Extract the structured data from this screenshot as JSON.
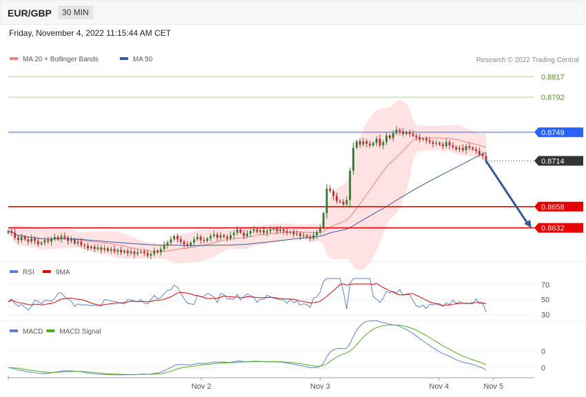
{
  "header": {
    "symbol": "EUR/GBP",
    "timeframe": "30 MIN"
  },
  "date_text": "Friday, November 4, 2022 11:15:44 AM CET",
  "credit": "Research © 2022 Trading Central",
  "colors": {
    "bb": "#f08080",
    "bb_fill": "#ffe0e0",
    "ma50": "#2e5a9c",
    "green": "#8bc34a",
    "blue": "#2962ff",
    "red": "#e60000",
    "current": "#333333",
    "rsi": "#5b7fd6",
    "rsi_ma": "#e60000",
    "macd": "#5b7fd6",
    "macd_signal": "#4caf1a",
    "bull": "#2e7d32",
    "bear": "#c62828",
    "arrow": "#2e5a9c"
  },
  "chart_data": [
    {
      "type": "candlestick",
      "legend": [
        {
          "name": "MA 20 + Bollinger Bands",
          "color": "#f08080"
        },
        {
          "name": "MA 50",
          "color": "#2e5a9c"
        }
      ],
      "levels": [
        {
          "value": 0.8817,
          "label": "0.8817",
          "style": "green-line"
        },
        {
          "value": 0.8792,
          "label": "0.8792",
          "style": "green-line"
        },
        {
          "value": 0.8749,
          "label": "0.8749",
          "style": "blue-box"
        },
        {
          "value": 0.8714,
          "label": "0.8714",
          "style": "current-box"
        },
        {
          "value": 0.8658,
          "label": "0.8658",
          "style": "red-box"
        },
        {
          "value": 0.8632,
          "label": "0.8632",
          "style": "red-box"
        }
      ],
      "ylim": [
        0.8592,
        0.8835
      ],
      "x_ticks": [
        {
          "t": 68,
          "label": "Nov 2"
        },
        {
          "t": 116,
          "label": "Nov 3"
        },
        {
          "t": 164,
          "label": "Nov 4"
        },
        {
          "t": 186,
          "label": "Nov 5"
        }
      ],
      "xlim": [
        -10,
        183
      ],
      "forecast": {
        "from": [
          0,
          0.8714
        ],
        "to": [
          14,
          0.8632
        ]
      },
      "closes": [
        0.8628,
        0.8626,
        0.862,
        0.8617,
        0.8621,
        0.8618,
        0.8615,
        0.8619,
        0.8616,
        0.8612,
        0.8614,
        0.8617,
        0.8615,
        0.8619,
        0.8621,
        0.8618,
        0.8622,
        0.862,
        0.8616,
        0.8618,
        0.8613,
        0.8615,
        0.8611,
        0.861,
        0.8607,
        0.8609,
        0.8606,
        0.8608,
        0.8605,
        0.8607,
        0.8604,
        0.8606,
        0.8603,
        0.8605,
        0.8602,
        0.8604,
        0.8601,
        0.8603,
        0.86,
        0.8602,
        0.8603,
        0.8601,
        0.8598,
        0.86,
        0.8604,
        0.8602,
        0.8606,
        0.8611,
        0.8614,
        0.8618,
        0.8622,
        0.8618,
        0.8615,
        0.8612,
        0.861,
        0.8614,
        0.8618,
        0.8621,
        0.8617,
        0.8616,
        0.8619,
        0.8622,
        0.8624,
        0.862,
        0.8623,
        0.8621,
        0.8619,
        0.8623,
        0.8626,
        0.863,
        0.8626,
        0.8622,
        0.8625,
        0.8628,
        0.863,
        0.8627,
        0.8629,
        0.8626,
        0.8628,
        0.863,
        0.8631,
        0.8628,
        0.863,
        0.8628,
        0.8626,
        0.8627,
        0.8624,
        0.8625,
        0.8622,
        0.8623,
        0.8621,
        0.8619,
        0.8623,
        0.8627,
        0.8632,
        0.865,
        0.868,
        0.8677,
        0.8671,
        0.8665,
        0.8664,
        0.8661,
        0.8666,
        0.8702,
        0.873,
        0.8738,
        0.8734,
        0.8738,
        0.8735,
        0.8733,
        0.8736,
        0.8741,
        0.8733,
        0.8737,
        0.8745,
        0.8742,
        0.8748,
        0.8752,
        0.875,
        0.8747,
        0.8749,
        0.8747,
        0.8745,
        0.8743,
        0.874,
        0.8741,
        0.8739,
        0.8737,
        0.8735,
        0.8736,
        0.8734,
        0.8732,
        0.8737,
        0.8733,
        0.8731,
        0.8728,
        0.873,
        0.8727,
        0.8732,
        0.873,
        0.8728,
        0.8726,
        0.8722,
        0.872,
        0.8714
      ]
    },
    {
      "type": "line",
      "legend": [
        {
          "name": "RSI",
          "color": "#5b7fd6"
        },
        {
          "name": "9MA",
          "color": "#e60000"
        }
      ],
      "y_ticks": [
        70,
        50,
        30
      ],
      "ylim": [
        25,
        80
      ],
      "current": 50
    },
    {
      "type": "line",
      "legend": [
        {
          "name": "MACD",
          "color": "#5b7fd6"
        },
        {
          "name": "MACD Signal",
          "color": "#4caf1a"
        }
      ],
      "y_ticks": [
        {
          "value": 0.001,
          "label": "0"
        },
        {
          "value": 0,
          "label": "0"
        }
      ],
      "ylim": [
        -0.0006,
        0.0018
      ],
      "current": 0
    }
  ]
}
